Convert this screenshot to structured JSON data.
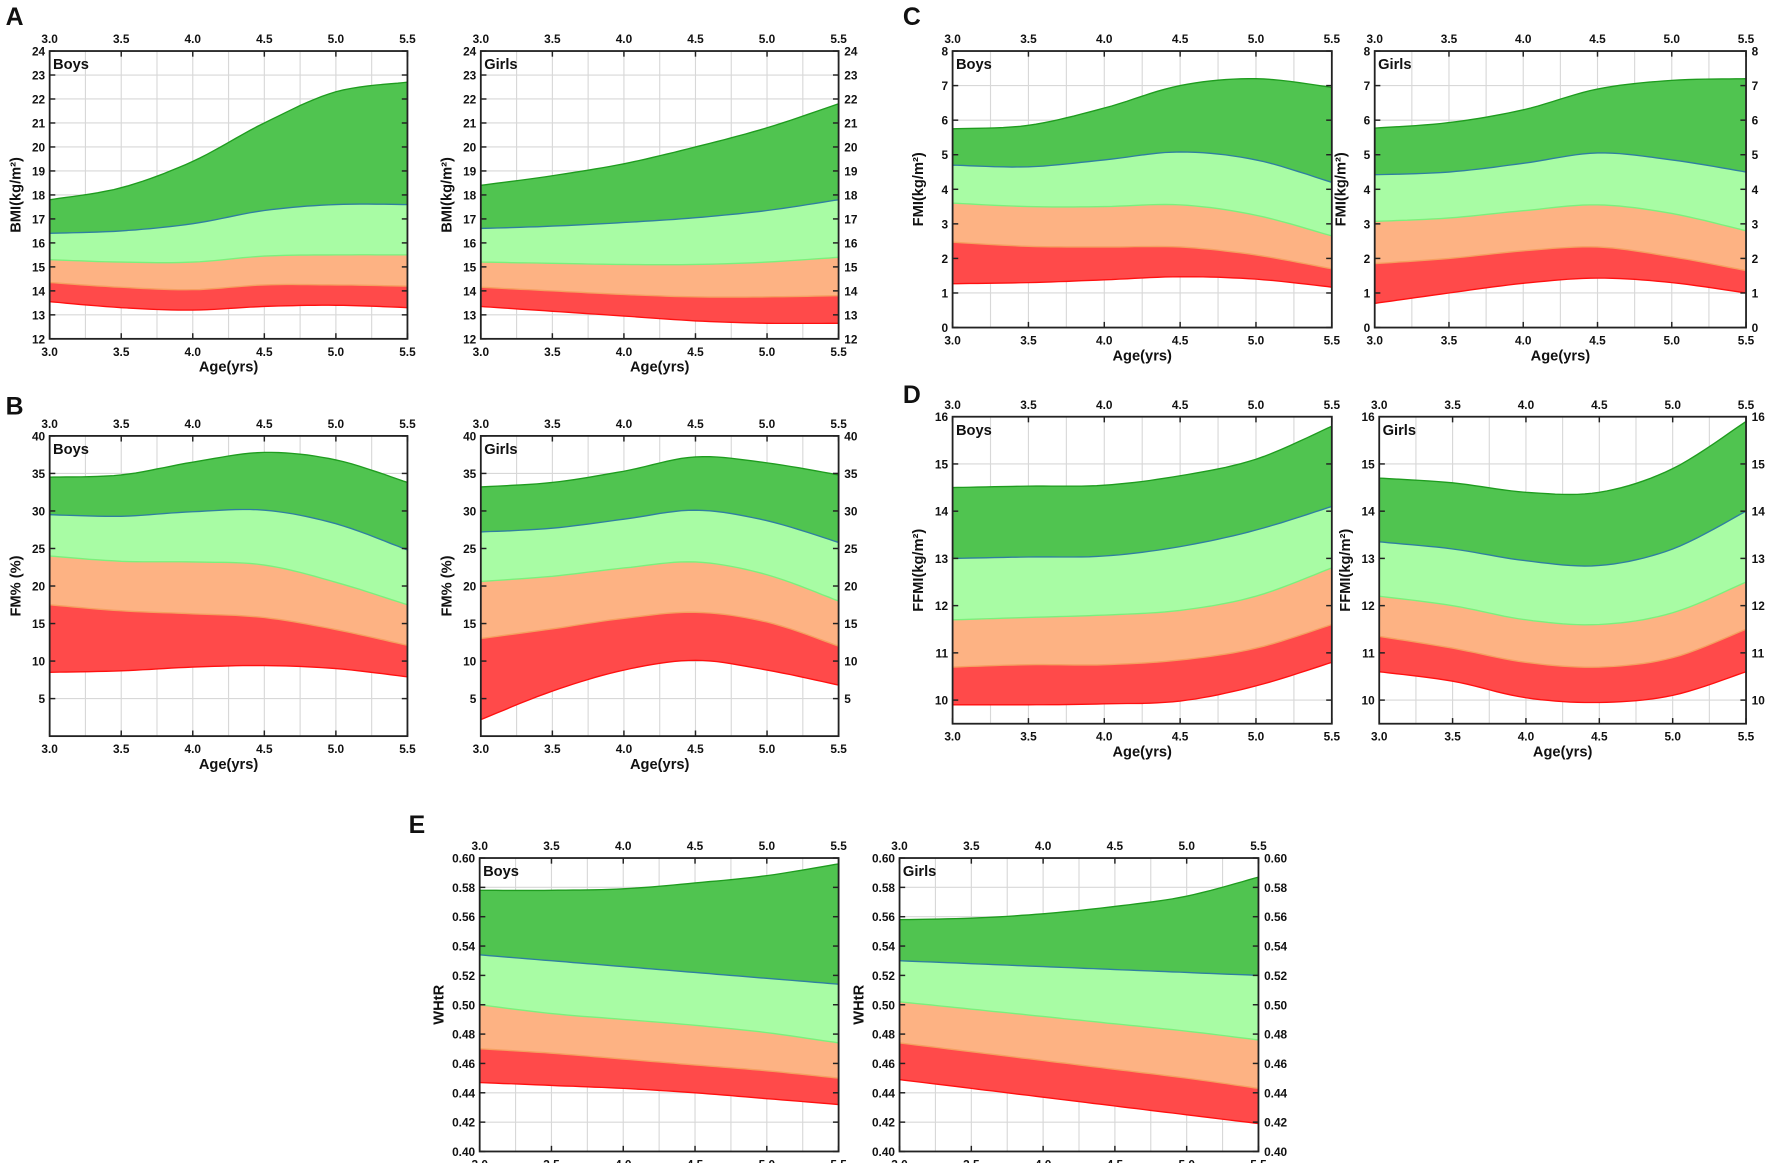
{
  "panels": [
    "A",
    "B",
    "C",
    "D",
    "E"
  ],
  "colors": {
    "bands": [
      "#ff4a4a",
      "#fdb283",
      "#a8fca4",
      "#50c450"
    ],
    "lines": [
      "#ff1010",
      "#f5a060",
      "#7cf07c",
      "#2f7fa0",
      "#1f9c1f"
    ],
    "grid": "#d8d8d8"
  },
  "chart_data": [
    {
      "panel": "A",
      "type": "area",
      "label": "Boys",
      "xlabel": "Age(yrs)",
      "ylabel": "BMI(kg/m²)",
      "xlim": [
        3.0,
        5.5
      ],
      "ylim": [
        12,
        24
      ],
      "x": [
        3.0,
        3.5,
        4.0,
        4.5,
        5.0,
        5.5
      ],
      "xticks": [
        "3.0",
        "3.5",
        "4.0",
        "4.5",
        "5.0",
        "5.5"
      ],
      "yticks": [
        "12",
        "13",
        "14",
        "15",
        "16",
        "17",
        "18",
        "19",
        "20",
        "21",
        "22",
        "23",
        "24"
      ],
      "curves": [
        [
          13.55,
          13.3,
          13.2,
          13.35,
          13.4,
          13.3
        ],
        [
          14.35,
          14.15,
          14.05,
          14.25,
          14.25,
          14.2
        ],
        [
          15.3,
          15.2,
          15.2,
          15.45,
          15.5,
          15.5
        ],
        [
          16.4,
          16.5,
          16.8,
          17.35,
          17.6,
          17.6
        ],
        [
          17.8,
          18.3,
          19.4,
          21.0,
          22.3,
          22.7
        ]
      ]
    },
    {
      "panel": "A",
      "type": "area",
      "label": "Girls",
      "xlabel": "Age(yrs)",
      "ylabel": "BMI(kg/m²)",
      "xlim": [
        3.0,
        5.5
      ],
      "ylim": [
        12,
        24
      ],
      "x": [
        3.0,
        3.5,
        4.0,
        4.5,
        5.0,
        5.5
      ],
      "xticks": [
        "3.0",
        "3.5",
        "4.0",
        "4.5",
        "5.0",
        "5.5"
      ],
      "yticks": [
        "12",
        "13",
        "14",
        "15",
        "16",
        "17",
        "18",
        "19",
        "20",
        "21",
        "22",
        "23",
        "24"
      ],
      "curves": [
        [
          13.35,
          13.15,
          12.95,
          12.75,
          12.65,
          12.65
        ],
        [
          14.15,
          14.0,
          13.85,
          13.75,
          13.75,
          13.8
        ],
        [
          15.2,
          15.15,
          15.1,
          15.1,
          15.2,
          15.4
        ],
        [
          16.6,
          16.7,
          16.85,
          17.05,
          17.35,
          17.8
        ],
        [
          18.4,
          18.8,
          19.3,
          20.0,
          20.8,
          21.8
        ]
      ]
    },
    {
      "panel": "B",
      "type": "area",
      "label": "Boys",
      "xlabel": "Age(yrs)",
      "ylabel": "FM% (%)",
      "xlim": [
        3.0,
        5.5
      ],
      "ylim": [
        0,
        40
      ],
      "x": [
        3.0,
        3.5,
        4.0,
        4.5,
        5.0,
        5.5
      ],
      "xticks": [
        "3.0",
        "3.5",
        "4.0",
        "4.5",
        "5.0",
        "5.5"
      ],
      "yticks": [
        "5",
        "10",
        "15",
        "20",
        "25",
        "30",
        "35",
        "40"
      ],
      "curves": [
        [
          8.5,
          8.7,
          9.2,
          9.4,
          9.0,
          7.9
        ],
        [
          17.5,
          16.7,
          16.3,
          15.8,
          14.2,
          12.1
        ],
        [
          24.0,
          23.3,
          23.2,
          22.8,
          20.5,
          17.5
        ],
        [
          29.5,
          29.3,
          29.9,
          30.1,
          28.3,
          24.8
        ],
        [
          34.5,
          34.8,
          36.5,
          37.8,
          36.8,
          33.8
        ]
      ]
    },
    {
      "panel": "B",
      "type": "area",
      "label": "Girls",
      "xlabel": "Age(yrs)",
      "ylabel": "FM% (%)",
      "xlim": [
        3.0,
        5.5
      ],
      "ylim": [
        0,
        40
      ],
      "x": [
        3.0,
        3.5,
        4.0,
        4.5,
        5.0,
        5.5
      ],
      "xticks": [
        "3.0",
        "3.5",
        "4.0",
        "4.5",
        "5.0",
        "5.5"
      ],
      "yticks": [
        "5",
        "10",
        "15",
        "20",
        "25",
        "30",
        "35",
        "40"
      ],
      "curves": [
        [
          2.2,
          6.0,
          8.8,
          10.1,
          8.8,
          6.8
        ],
        [
          13.0,
          14.3,
          15.7,
          16.5,
          15.2,
          12.0
        ],
        [
          20.6,
          21.3,
          22.4,
          23.2,
          21.5,
          18.0
        ],
        [
          27.2,
          27.7,
          28.9,
          30.1,
          28.7,
          25.8
        ],
        [
          33.2,
          33.8,
          35.3,
          37.2,
          36.4,
          34.8
        ]
      ]
    },
    {
      "panel": "C",
      "type": "area",
      "label": "Boys",
      "xlabel": "Age(yrs)",
      "ylabel": "FMI(kg/m²)",
      "xlim": [
        3.0,
        5.5
      ],
      "ylim": [
        0,
        8
      ],
      "x": [
        3.0,
        3.5,
        4.0,
        4.5,
        5.0,
        5.5
      ],
      "xticks": [
        "3.0",
        "3.5",
        "4.0",
        "4.5",
        "5.0",
        "5.5"
      ],
      "yticks": [
        "0",
        "1",
        "2",
        "3",
        "4",
        "5",
        "6",
        "7",
        "8"
      ],
      "curves": [
        [
          1.27,
          1.3,
          1.38,
          1.47,
          1.4,
          1.17
        ],
        [
          2.47,
          2.35,
          2.33,
          2.33,
          2.1,
          1.7
        ],
        [
          3.6,
          3.5,
          3.5,
          3.55,
          3.25,
          2.65
        ],
        [
          4.7,
          4.65,
          4.85,
          5.08,
          4.85,
          4.2
        ],
        [
          5.75,
          5.85,
          6.35,
          7.0,
          7.2,
          6.95
        ]
      ]
    },
    {
      "panel": "C",
      "type": "area",
      "label": "Girls",
      "xlabel": "Age(yrs)",
      "ylabel": "FMI(kg/m²)",
      "xlim": [
        3.0,
        5.5
      ],
      "ylim": [
        0,
        8
      ],
      "x": [
        3.0,
        3.5,
        4.0,
        4.5,
        5.0,
        5.5
      ],
      "xticks": [
        "3.0",
        "3.5",
        "4.0",
        "4.5",
        "5.0",
        "5.5"
      ],
      "yticks": [
        "0",
        "1",
        "2",
        "3",
        "4",
        "5",
        "6",
        "7",
        "8"
      ],
      "curves": [
        [
          0.7,
          1.0,
          1.28,
          1.43,
          1.3,
          1.0
        ],
        [
          1.85,
          2.0,
          2.22,
          2.33,
          2.05,
          1.65
        ],
        [
          3.07,
          3.17,
          3.38,
          3.55,
          3.3,
          2.8
        ],
        [
          4.42,
          4.5,
          4.75,
          5.05,
          4.85,
          4.5
        ],
        [
          5.77,
          5.93,
          6.3,
          6.9,
          7.15,
          7.2
        ]
      ]
    },
    {
      "panel": "D",
      "type": "area",
      "label": "Boys",
      "xlabel": "Age(yrs)",
      "ylabel": "FFMI(kg/m²)",
      "xlim": [
        3.0,
        5.5
      ],
      "ylim": [
        9.5,
        16
      ],
      "x": [
        3.0,
        3.5,
        4.0,
        4.5,
        5.0,
        5.5
      ],
      "xticks": [
        "3.0",
        "3.5",
        "4.0",
        "4.5",
        "5.0",
        "5.5"
      ],
      "yticks": [
        "10",
        "11",
        "12",
        "13",
        "14",
        "15",
        "16"
      ],
      "curves": [
        [
          9.9,
          9.9,
          9.92,
          9.98,
          10.3,
          10.8
        ],
        [
          10.7,
          10.75,
          10.75,
          10.85,
          11.1,
          11.6
        ],
        [
          11.7,
          11.75,
          11.8,
          11.9,
          12.2,
          12.8
        ],
        [
          13.0,
          13.03,
          13.05,
          13.25,
          13.6,
          14.1
        ],
        [
          14.5,
          14.53,
          14.55,
          14.75,
          15.1,
          15.8
        ]
      ]
    },
    {
      "panel": "D",
      "type": "area",
      "label": "Girls",
      "xlabel": "Age(yrs)",
      "ylabel": "FFMI(kg/m²)",
      "xlim": [
        3.0,
        5.5
      ],
      "ylim": [
        9.5,
        16
      ],
      "x": [
        3.0,
        3.5,
        4.0,
        4.5,
        5.0,
        5.5
      ],
      "xticks": [
        "3.0",
        "3.5",
        "4.0",
        "4.5",
        "5.0",
        "5.5"
      ],
      "yticks": [
        "10",
        "11",
        "12",
        "13",
        "14",
        "15",
        "16"
      ],
      "curves": [
        [
          10.6,
          10.4,
          10.05,
          9.95,
          10.1,
          10.6
        ],
        [
          11.35,
          11.1,
          10.8,
          10.7,
          10.9,
          11.5
        ],
        [
          12.2,
          12.0,
          11.7,
          11.6,
          11.85,
          12.5
        ],
        [
          13.35,
          13.2,
          12.95,
          12.85,
          13.2,
          14.0
        ],
        [
          14.7,
          14.6,
          14.4,
          14.4,
          14.9,
          15.9
        ]
      ]
    },
    {
      "panel": "E",
      "type": "area",
      "label": "Boys",
      "xlabel": "Age(yrs)",
      "ylabel": "WHtR",
      "xlim": [
        3.0,
        5.5
      ],
      "ylim": [
        0.4,
        0.6
      ],
      "x": [
        3.0,
        3.5,
        4.0,
        4.5,
        5.0,
        5.5
      ],
      "xticks": [
        "3.0",
        "3.5",
        "4.0",
        "4.5",
        "5.0",
        "5.5"
      ],
      "yticks": [
        "0.40",
        "0.42",
        "0.44",
        "0.46",
        "0.48",
        "0.50",
        "0.52",
        "0.54",
        "0.56",
        "0.58",
        "0.60"
      ],
      "curves": [
        [
          0.447,
          0.445,
          0.443,
          0.44,
          0.436,
          0.432
        ],
        [
          0.47,
          0.467,
          0.463,
          0.459,
          0.455,
          0.45
        ],
        [
          0.5,
          0.494,
          0.49,
          0.486,
          0.481,
          0.474
        ],
        [
          0.534,
          0.53,
          0.526,
          0.522,
          0.518,
          0.514
        ],
        [
          0.578,
          0.578,
          0.579,
          0.583,
          0.588,
          0.596
        ]
      ]
    },
    {
      "panel": "E",
      "type": "area",
      "label": "Girls",
      "xlabel": "Age(yrs)",
      "ylabel": "WHtR",
      "xlim": [
        3.0,
        5.5
      ],
      "ylim": [
        0.4,
        0.6
      ],
      "x": [
        3.0,
        3.5,
        4.0,
        4.5,
        5.0,
        5.5
      ],
      "xticks": [
        "3.0",
        "3.5",
        "4.0",
        "4.5",
        "5.0",
        "5.5"
      ],
      "yticks": [
        "0.40",
        "0.42",
        "0.44",
        "0.46",
        "0.48",
        "0.50",
        "0.52",
        "0.54",
        "0.56",
        "0.58",
        "0.60"
      ],
      "curves": [
        [
          0.449,
          0.443,
          0.437,
          0.431,
          0.425,
          0.419
        ],
        [
          0.474,
          0.468,
          0.462,
          0.456,
          0.45,
          0.443
        ],
        [
          0.502,
          0.497,
          0.492,
          0.487,
          0.482,
          0.476
        ],
        [
          0.53,
          0.528,
          0.526,
          0.524,
          0.522,
          0.52
        ],
        [
          0.558,
          0.559,
          0.562,
          0.567,
          0.574,
          0.587
        ]
      ]
    }
  ]
}
